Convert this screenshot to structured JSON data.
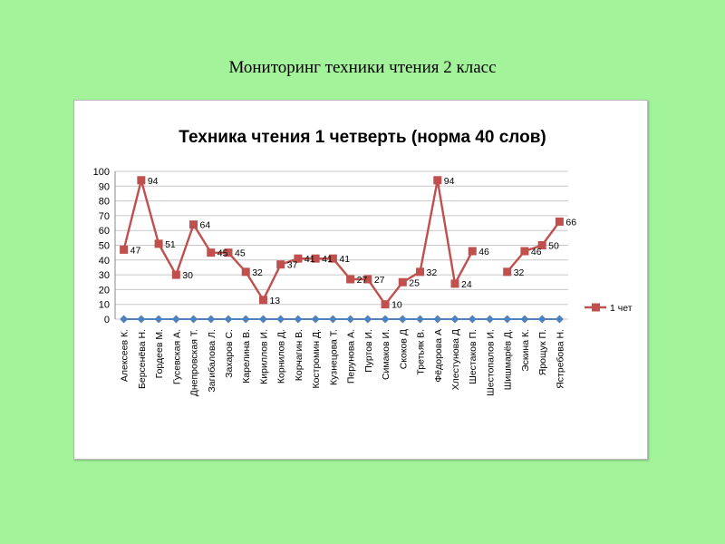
{
  "slide": {
    "title": "Мониторинг техники чтения 2 класс"
  },
  "colors": {
    "background": "#a3f39a",
    "series_main": "#c0504d",
    "series_zero": "#4f81bd",
    "grid": "#c8c8c8"
  },
  "chart_data": {
    "type": "line",
    "title": "Техника чтения 1 четверть (норма 40 слов)",
    "xlabel": "",
    "ylabel": "",
    "ylim": [
      0,
      100
    ],
    "yticks": [
      0,
      10,
      20,
      30,
      40,
      50,
      60,
      70,
      80,
      90,
      100
    ],
    "grid": true,
    "legend_position": "right",
    "categories": [
      "Алексеев К.",
      "Берсенёва Н.",
      "Гордеев М.",
      "Гусевская А.",
      "Днепровская Т.",
      "Загибалова Л.",
      "Захаров С.",
      "Карелина В.",
      "Кириллов И.",
      "Корнилов Д.",
      "Корчагин В.",
      "Костромин Д.",
      "Кузнецова Т.",
      "Перунова А.",
      "Пуртов И.",
      "Симаков И.",
      "Скоков Д",
      "Третьяк В.",
      "Фёдорова А",
      "Хлестунова Д",
      "Шестаков П.",
      "Шестопалов И.",
      "Шишмарёв Д.",
      "Эскина К.",
      "Ярощук П.",
      "Ястребова Н."
    ],
    "series": [
      {
        "name": "1 чет",
        "marker": "square",
        "values": [
          47,
          94,
          51,
          30,
          64,
          45,
          45,
          32,
          13,
          37,
          41,
          41,
          41,
          27,
          27,
          10,
          25,
          32,
          94,
          24,
          46,
          null,
          32,
          46,
          50,
          66
        ],
        "labels": [
          "47",
          "94",
          "51",
          "30",
          "64",
          "45",
          "45",
          "32",
          "13",
          "37",
          "41",
          "41",
          "41",
          "27",
          "27",
          "10",
          "25",
          "32",
          "94",
          "24",
          "46",
          "",
          "32",
          "46",
          "50",
          "66"
        ]
      },
      {
        "marker": "diamond",
        "values": [
          0,
          0,
          0,
          0,
          0,
          0,
          0,
          0,
          0,
          0,
          0,
          0,
          0,
          0,
          0,
          0,
          0,
          0,
          0,
          0,
          0,
          0,
          0,
          0,
          0,
          0
        ]
      }
    ]
  }
}
